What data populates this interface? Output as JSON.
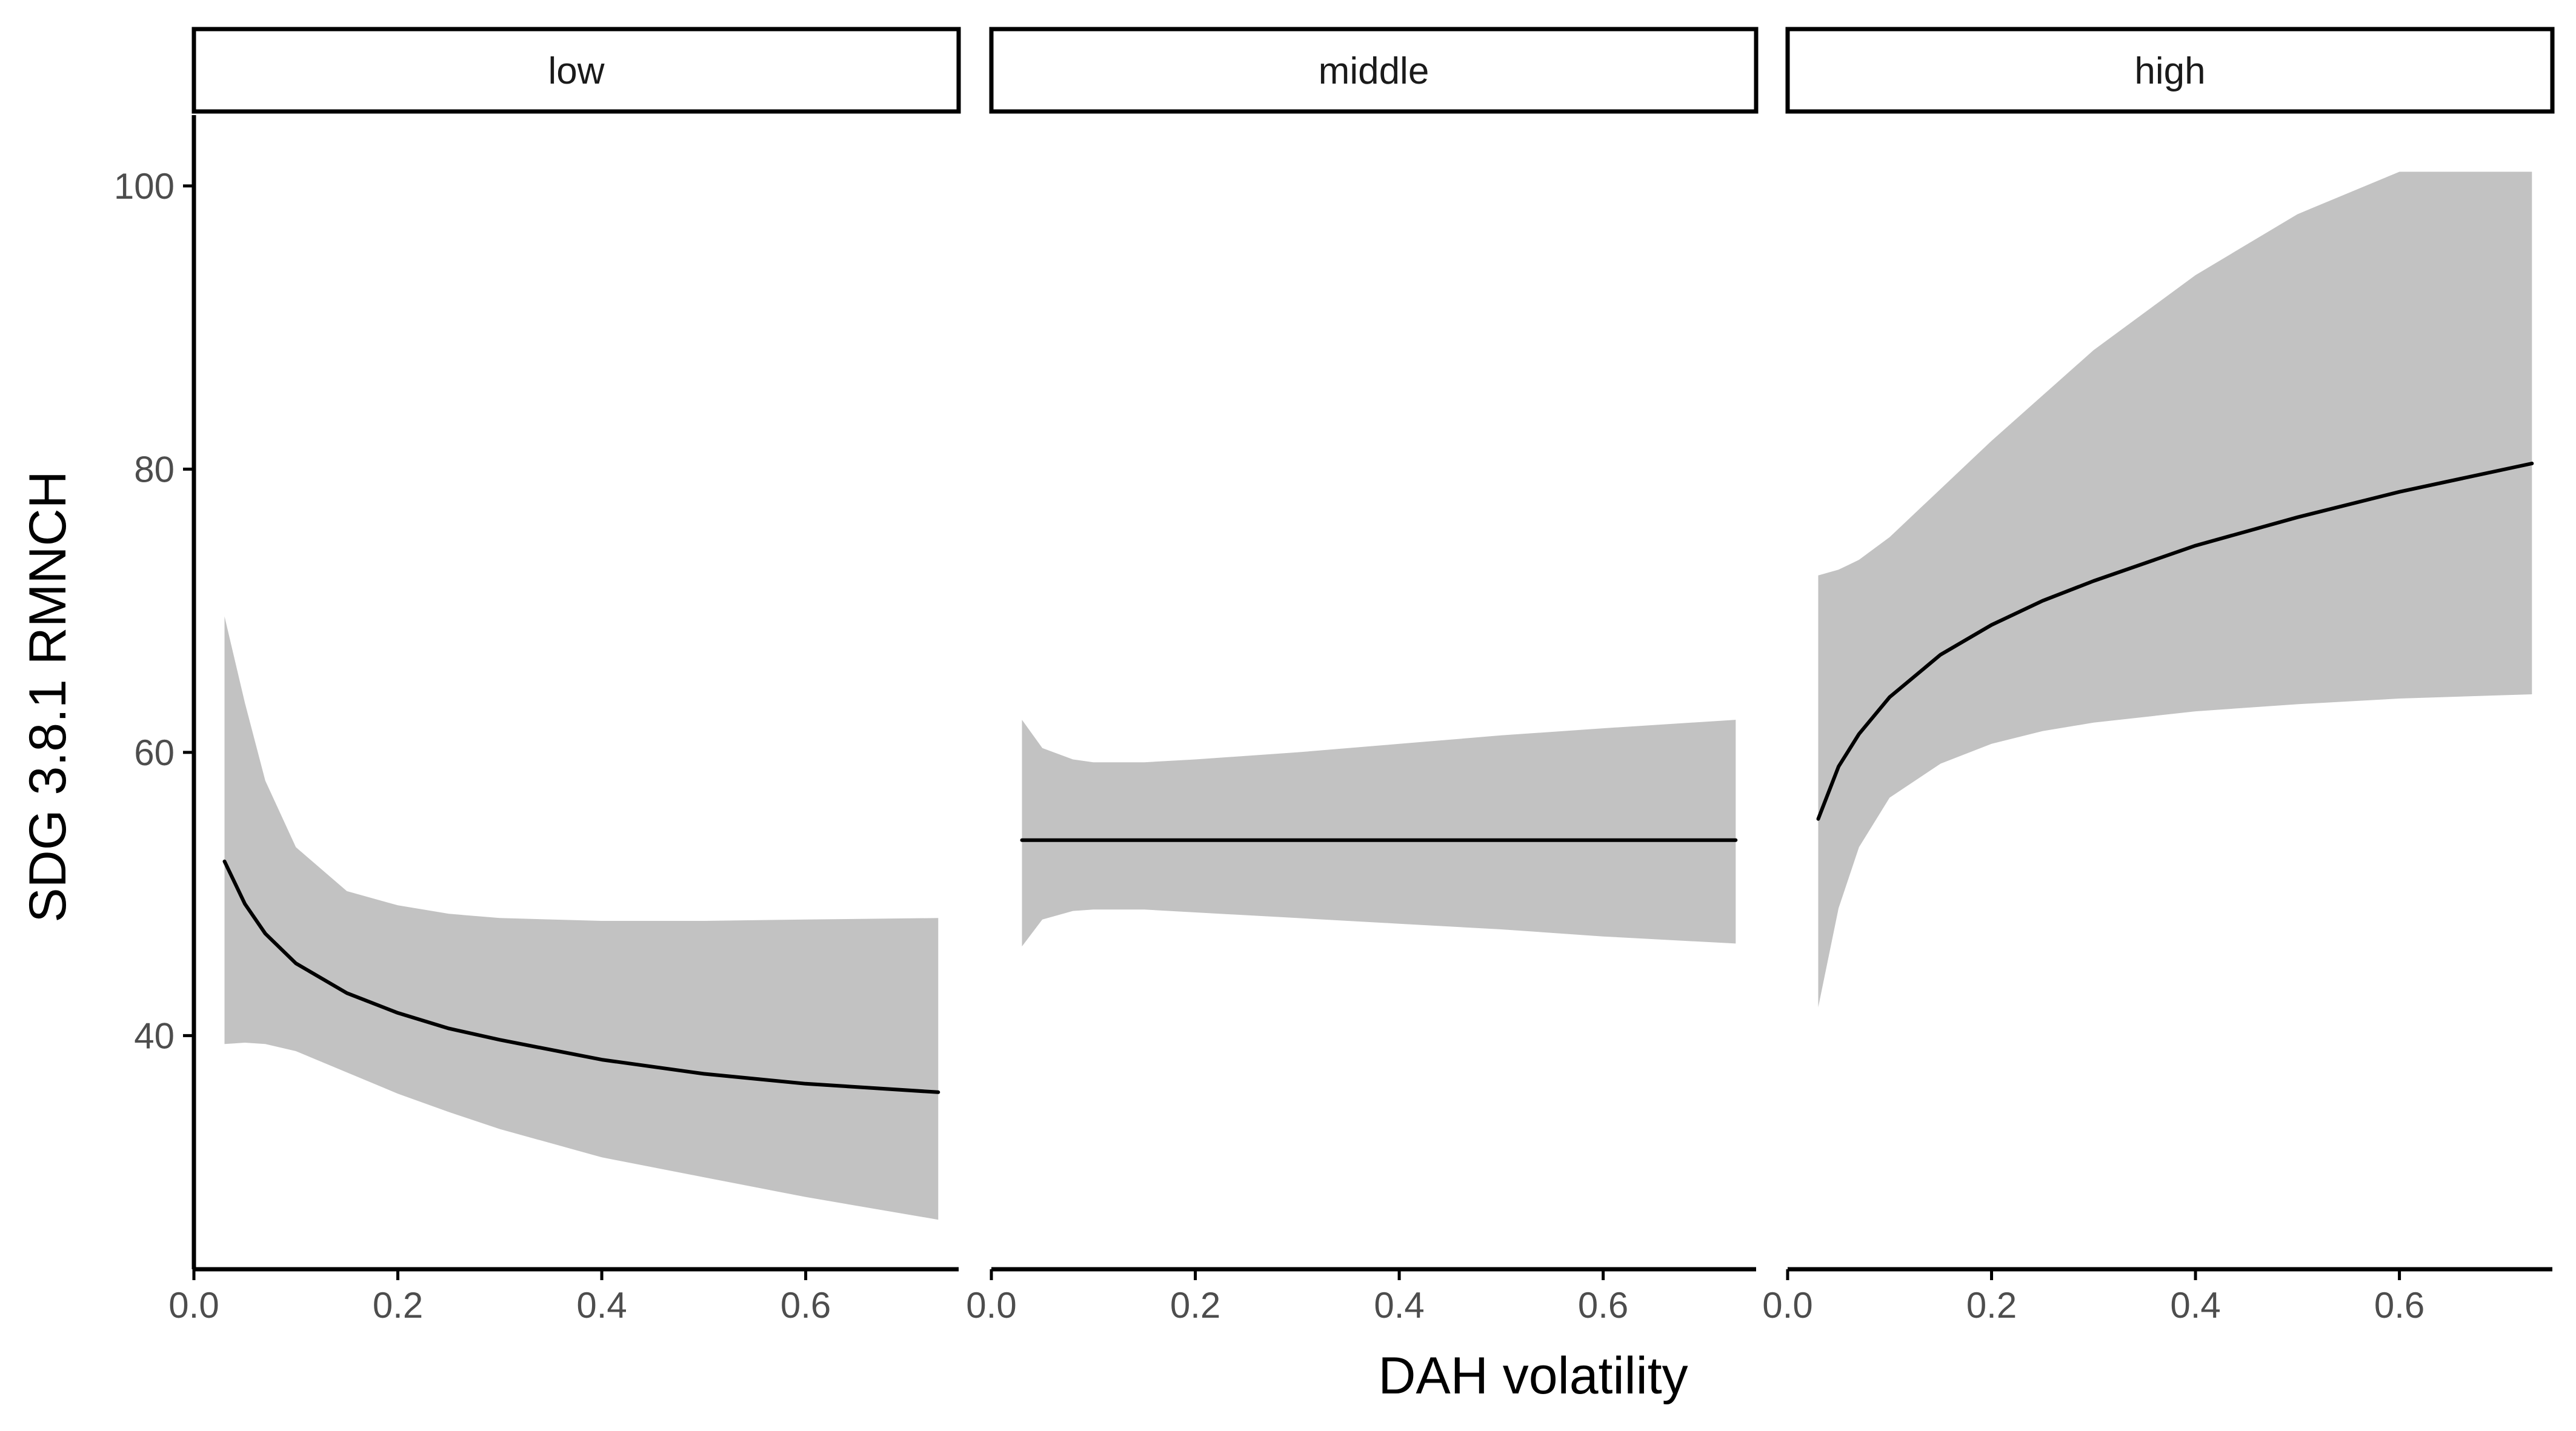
{
  "chart_data": {
    "type": "line",
    "xlabel": "DAH volatility",
    "ylabel": "SDG 3.8.1 RMNCH",
    "xlim": [
      0,
      0.75
    ],
    "ylim": [
      23.5,
      105
    ],
    "x_ticks": [
      0.0,
      0.2,
      0.4,
      0.6
    ],
    "x_tick_labels": [
      "0.0",
      "0.2",
      "0.4",
      "0.6"
    ],
    "y_ticks": [
      40,
      60,
      80,
      100
    ],
    "y_tick_labels": [
      "40",
      "60",
      "80",
      "100"
    ],
    "grid": false,
    "legend": "none",
    "colors": {
      "line": "#000000",
      "ribbon": "#c2c2c2",
      "axis": "#000000"
    },
    "panels": [
      {
        "label": "low",
        "x": [
          0.03,
          0.05,
          0.07,
          0.1,
          0.15,
          0.2,
          0.25,
          0.3,
          0.4,
          0.5,
          0.6,
          0.73
        ],
        "y": [
          52.3,
          49.3,
          47.2,
          45.1,
          43.0,
          41.6,
          40.5,
          39.7,
          38.3,
          37.3,
          36.6,
          36.0
        ],
        "lower": [
          39.4,
          39.5,
          39.4,
          38.9,
          37.4,
          35.9,
          34.6,
          33.4,
          31.4,
          30.0,
          28.6,
          27.0
        ],
        "upper": [
          69.6,
          63.5,
          58.0,
          53.3,
          50.2,
          49.2,
          48.6,
          48.3,
          48.1,
          48.1,
          48.2,
          48.3
        ]
      },
      {
        "label": "middle",
        "x": [
          0.03,
          0.05,
          0.08,
          0.1,
          0.15,
          0.2,
          0.3,
          0.4,
          0.5,
          0.6,
          0.73
        ],
        "y": [
          53.8,
          53.8,
          53.8,
          53.8,
          53.8,
          53.8,
          53.8,
          53.8,
          53.8,
          53.8,
          53.8
        ],
        "lower": [
          46.3,
          48.2,
          48.8,
          48.9,
          48.9,
          48.7,
          48.3,
          47.9,
          47.5,
          47.0,
          46.5
        ],
        "upper": [
          62.3,
          60.3,
          59.5,
          59.3,
          59.3,
          59.5,
          60.0,
          60.6,
          61.2,
          61.7,
          62.3
        ]
      },
      {
        "label": "high",
        "x": [
          0.03,
          0.05,
          0.07,
          0.1,
          0.15,
          0.2,
          0.25,
          0.3,
          0.4,
          0.5,
          0.6,
          0.73
        ],
        "y": [
          55.3,
          59.0,
          61.3,
          63.9,
          66.9,
          69.0,
          70.7,
          72.1,
          74.6,
          76.6,
          78.4,
          80.4
        ],
        "lower": [
          42.0,
          49.0,
          53.3,
          56.8,
          59.2,
          60.6,
          61.5,
          62.1,
          62.9,
          63.4,
          63.8,
          64.1
        ],
        "upper": [
          72.5,
          72.9,
          73.6,
          75.2,
          78.6,
          82.0,
          85.2,
          88.4,
          93.7,
          98.0,
          101.0,
          101.0
        ]
      }
    ]
  }
}
